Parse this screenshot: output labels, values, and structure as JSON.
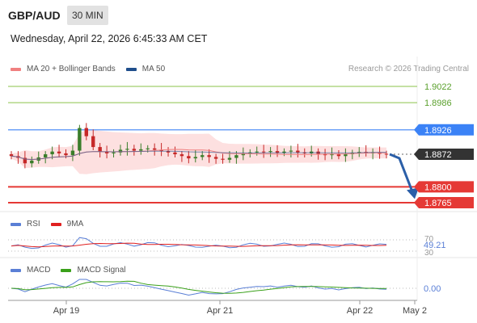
{
  "header": {
    "pair": "GBP/AUD",
    "timeframe": "30 MIN",
    "timestamp": "Wednesday, April 22, 2026 6:45:33 AM CET"
  },
  "main_legend": [
    {
      "label": "MA 20 + Bollinger Bands",
      "color": "#f08080"
    },
    {
      "label": "MA 50",
      "color": "#1f4e8c"
    }
  ],
  "copyright": "Research © 2026 Trading Central",
  "rsi_legend": [
    {
      "label": "RSI",
      "color": "#5a7fd6"
    },
    {
      "label": "9MA",
      "color": "#e02020"
    }
  ],
  "macd_legend": [
    {
      "label": "MACD",
      "color": "#5a7fd6"
    },
    {
      "label": "MACD Signal",
      "color": "#3aa01a"
    }
  ],
  "colors": {
    "target_lines": "#8bc34a",
    "resistance": "#3b82f6",
    "support": "#e53935",
    "current": "#333333",
    "arrow": "#2b5fa8",
    "candle_up": "#3a7d2a",
    "candle_down": "#c62828",
    "bollinger_fill": "#fde0e0"
  },
  "levels": [
    {
      "label": "1.9022",
      "value": 1.9022,
      "type": "target"
    },
    {
      "label": "1.8986",
      "value": 1.8986,
      "type": "target"
    },
    {
      "label": "1.8926",
      "value": 1.8926,
      "type": "resistance"
    },
    {
      "label": "1.8872",
      "value": 1.8872,
      "type": "current"
    },
    {
      "label": "1.8800",
      "value": 1.88,
      "type": "support"
    },
    {
      "label": "1.8765",
      "value": 1.8765,
      "type": "support"
    }
  ],
  "rsi": {
    "current": "49.21",
    "levels": [
      "70",
      "30"
    ]
  },
  "macd": {
    "zero_label": "0.00"
  },
  "chart_data": {
    "type": "line",
    "title": "GBP/AUD",
    "price_close": [
      1.8868,
      1.8864,
      1.8852,
      1.8858,
      1.8865,
      1.8872,
      1.8878,
      1.8874,
      1.887,
      1.888,
      1.893,
      1.8912,
      1.8888,
      1.8878,
      1.8874,
      1.8876,
      1.8882,
      1.8884,
      1.888,
      1.8883,
      1.8885,
      1.8882,
      1.8879,
      1.8876,
      1.8872,
      1.8868,
      1.8863,
      1.8866,
      1.887,
      1.8866,
      1.8862,
      1.886,
      1.8864,
      1.887,
      1.8874,
      1.8876,
      1.8878,
      1.8877,
      1.8879,
      1.8875,
      1.8878,
      1.888,
      1.8876,
      1.8874,
      1.8878,
      1.8873,
      1.887,
      1.8872,
      1.8868,
      1.8872,
      1.8875,
      1.8877,
      1.8874,
      1.8876,
      1.8873,
      1.8872
    ],
    "x_ticks": [
      "Apr 19",
      "Apr 21",
      "Apr 22",
      "May 2"
    ],
    "y_labels": [
      "1.9022",
      "1.8986",
      "1.8926",
      "1.8872",
      "1.8800",
      "1.8765"
    ],
    "forecast": {
      "from": 1.8872,
      "to": 1.88
    },
    "rsi_current": 49.21,
    "rsi_levels": [
      70,
      30
    ],
    "macd_zero": 0.0
  }
}
